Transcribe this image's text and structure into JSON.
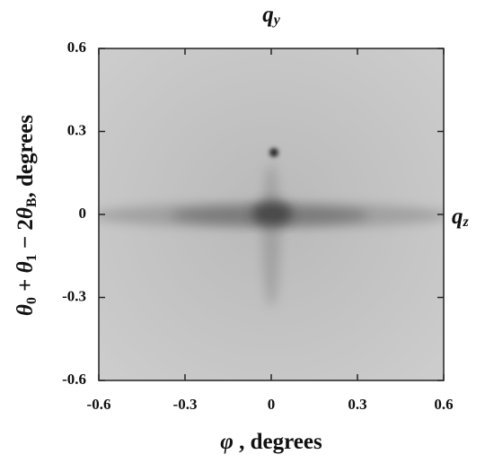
{
  "chart_data": {
    "type": "image",
    "top_label": [
      "q",
      "y"
    ],
    "right_label": [
      "q",
      "z"
    ],
    "xlabel": [
      "φ",
      " , degrees"
    ],
    "ylabel": [
      "θ",
      "0",
      " + ",
      "θ",
      "1",
      " − 2",
      "θ",
      "B",
      ", degrees"
    ],
    "xlim": [
      -0.6,
      0.6
    ],
    "xticks": [
      -0.6,
      -0.3,
      0,
      0.3,
      0.6
    ],
    "ylim": [
      -0.6,
      0.6
    ],
    "yticks": [
      -0.6,
      -0.3,
      0,
      0.3,
      0.6
    ]
  }
}
